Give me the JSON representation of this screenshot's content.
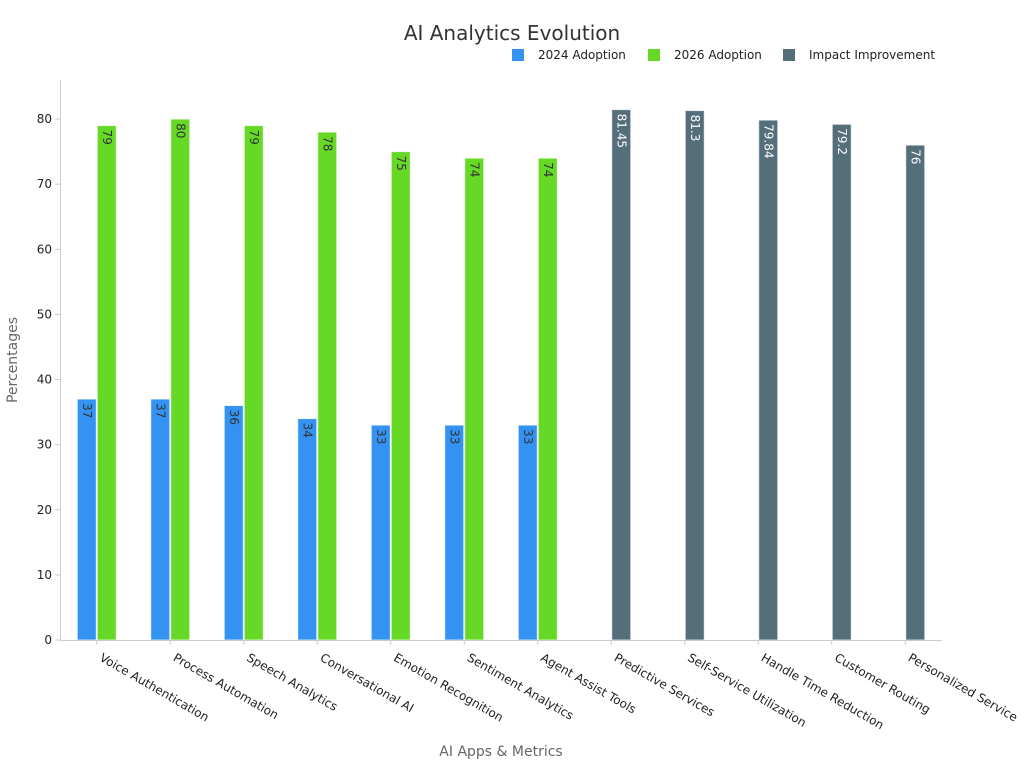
{
  "chart_data": {
    "type": "bar",
    "title": "AI Analytics Evolution",
    "xlabel": "AI Apps & Metrics",
    "ylabel": "Percentages",
    "ylim": [
      0,
      86
    ],
    "yticks": [
      0,
      10,
      20,
      30,
      40,
      50,
      60,
      70,
      80
    ],
    "categories": [
      "Voice Authentication",
      "Process Automation",
      "Speech Analytics",
      "Conversational AI",
      "Emotion Recognition",
      "Sentiment Analytics",
      "Agent Assist Tools",
      "Predictive Services",
      "Self-Service Utilization",
      "Handle Time Reduction",
      "Customer Routing",
      "Personalized Service"
    ],
    "series": [
      {
        "name": "2024 Adoption",
        "color": "#3392f2",
        "label_color": "#333333",
        "values": [
          37,
          37,
          36,
          34,
          33,
          33,
          33,
          null,
          null,
          null,
          null,
          null
        ],
        "labels": [
          "37",
          "37",
          "36",
          "34",
          "33",
          "33",
          "33",
          "",
          "",
          "",
          "",
          ""
        ]
      },
      {
        "name": "2026 Adoption",
        "color": "#66d927",
        "label_color": "#333333",
        "values": [
          79,
          80,
          79,
          78,
          75,
          74,
          74,
          null,
          null,
          null,
          null,
          null
        ],
        "labels": [
          "79",
          "80",
          "79",
          "78",
          "75",
          "74",
          "74",
          "",
          "",
          "",
          "",
          ""
        ]
      },
      {
        "name": "Impact Improvement",
        "color": "#546e7a",
        "label_color": "#ffffff",
        "values": [
          null,
          null,
          null,
          null,
          null,
          null,
          null,
          81.45,
          81.3,
          79.84,
          79.2,
          76
        ],
        "labels": [
          "",
          "",
          "",
          "",
          "",
          "",
          "",
          "81.45",
          "81.3",
          "79.84",
          "79.2",
          "76"
        ]
      }
    ],
    "legend_position": "top-right",
    "grid": false
  }
}
